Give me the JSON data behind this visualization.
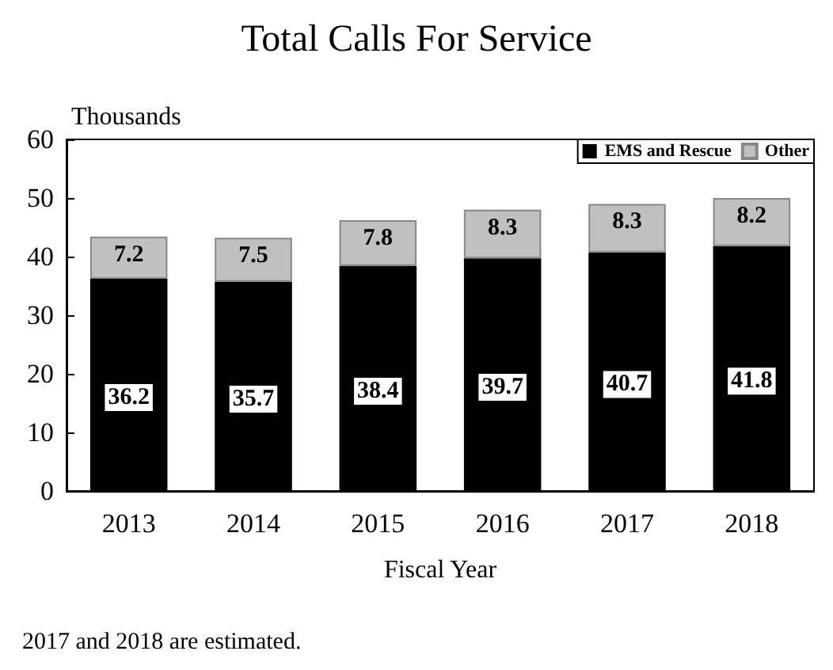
{
  "chart_data": {
    "type": "bar",
    "title": "Total Calls For Service",
    "xlabel": "Fiscal Year",
    "ylabel": "Thousands",
    "annotations": [
      "2017 and 2018 are estimated."
    ],
    "categories": [
      "2013",
      "2014",
      "2015",
      "2016",
      "2017",
      "2018"
    ],
    "series": [
      {
        "name": "EMS and Rescue",
        "color": "#000000",
        "values": [
          36.2,
          35.7,
          38.4,
          39.7,
          40.7,
          41.8
        ]
      },
      {
        "name": "Other",
        "color": "#c0c0c0",
        "values": [
          7.2,
          7.5,
          7.8,
          8.3,
          8.3,
          8.2
        ]
      }
    ],
    "stacked": true,
    "data_labels": true,
    "ylim": [
      0,
      60
    ],
    "yticks": [
      0,
      10,
      20,
      30,
      40,
      50,
      60
    ],
    "grid": false,
    "legend": "top right"
  }
}
